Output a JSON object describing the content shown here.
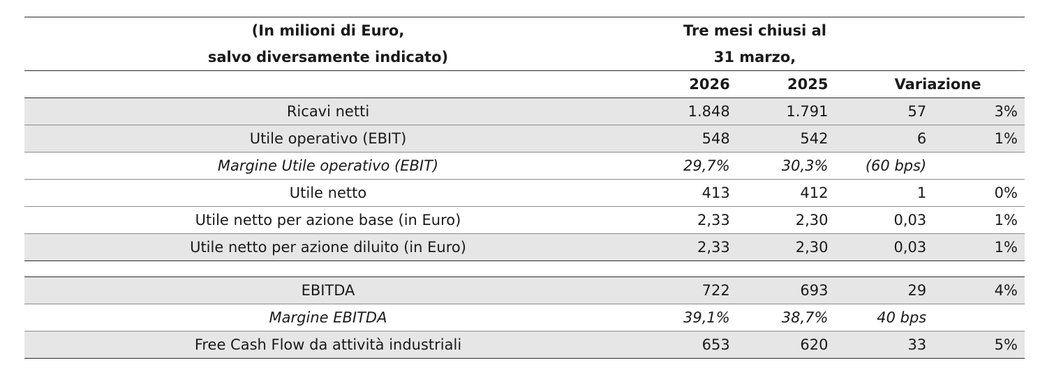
{
  "header": {
    "unit_line1": "(In milioni di Euro,",
    "unit_line2": "salvo diversamente indicato)",
    "period_line1": "Tre mesi chiusi al",
    "period_line2": "31 marzo,"
  },
  "columns": {
    "y2026": "2026",
    "y2025": "2025",
    "change": "Variazione"
  },
  "rows": [
    {
      "label": "Ricavi netti",
      "v2026": "1.848",
      "v2025": "1.791",
      "change": "57",
      "pct": "3%"
    },
    {
      "label": "Utile operativo (EBIT)",
      "v2026": "548",
      "v2025": "542",
      "change": "6",
      "pct": "1%"
    },
    {
      "label": "Margine Utile operativo (EBIT)",
      "v2026": "29,7%",
      "v2025": "30,3%",
      "change": "(60 bps)",
      "pct": ""
    },
    {
      "label": "Utile netto",
      "v2026": "413",
      "v2025": "412",
      "change": "1",
      "pct": "0%"
    },
    {
      "label": "Utile netto per azione base (in Euro)",
      "v2026": "2,33",
      "v2025": "2,30",
      "change": "0,03",
      "pct": "1%"
    },
    {
      "label": "Utile netto per azione diluito (in Euro)",
      "v2026": "2,33",
      "v2025": "2,30",
      "change": "0,03",
      "pct": "1%"
    },
    {
      "label": "EBITDA",
      "v2026": "722",
      "v2025": "693",
      "change": "29",
      "pct": "4%"
    },
    {
      "label": "Margine EBITDA",
      "v2026": "39,1%",
      "v2025": "38,7%",
      "change": "40 bps",
      "pct": ""
    },
    {
      "label": "Free Cash Flow da attività industriali",
      "v2026": "653",
      "v2025": "620",
      "change": "33",
      "pct": "5%"
    }
  ]
}
